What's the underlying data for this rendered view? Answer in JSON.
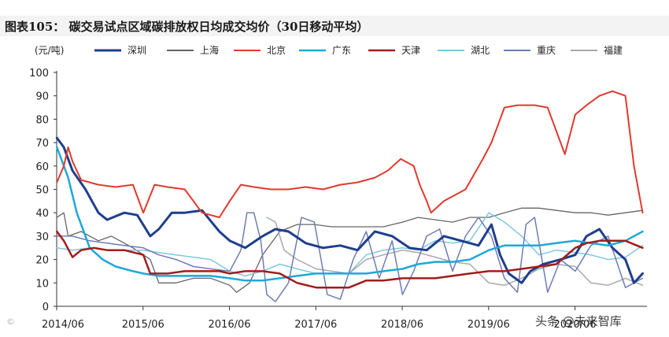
{
  "title": "图表105：  碳交易试点区域碳排放权日均成交均价（30日移动平均）",
  "watermark_right": "头条 @未来智库",
  "watermark_left": "©",
  "chart_data": {
    "type": "line",
    "unit_label": "(元/吨)",
    "ylim": [
      0,
      100
    ],
    "y_ticks": [
      "0",
      "10",
      "20",
      "30",
      "40",
      "50",
      "60",
      "70",
      "80",
      "90",
      "100"
    ],
    "x_tick_labels": [
      "2014/06",
      "2015/06",
      "2016/06",
      "2017/06",
      "2018/06",
      "2019/06",
      "2020/06"
    ],
    "xlim": [
      2014.417,
      2021.25
    ],
    "legend_position": "top",
    "series": [
      {
        "name": "深圳",
        "color": "#1f3e8c",
        "width": 3,
        "x": [
          2014.42,
          2014.5,
          2014.6,
          2014.75,
          2014.9,
          2015.0,
          2015.2,
          2015.35,
          2015.5,
          2015.6,
          2015.75,
          2015.9,
          2016.1,
          2016.3,
          2016.42,
          2016.6,
          2016.8,
          2016.95,
          2017.1,
          2017.3,
          2017.5,
          2017.7,
          2017.9,
          2018.1,
          2018.3,
          2018.5,
          2018.7,
          2018.9,
          2019.1,
          2019.3,
          2019.45,
          2019.55,
          2019.65,
          2019.8,
          2019.9,
          2020.05,
          2020.25,
          2020.42,
          2020.55,
          2020.7,
          2020.85,
          2021.0,
          2021.1,
          2021.2
        ],
        "y": [
          72,
          68,
          58,
          50,
          40,
          37,
          40,
          39,
          30,
          33,
          40,
          40,
          41,
          32,
          28,
          25,
          30,
          33,
          32,
          27,
          25,
          26,
          24,
          32,
          30,
          25,
          24,
          30,
          28,
          26,
          35,
          22,
          14,
          10,
          15,
          18,
          20,
          22,
          30,
          33,
          25,
          20,
          10,
          14
        ]
      },
      {
        "name": "上海",
        "color": "#666666",
        "width": 1.3,
        "x": [
          2014.42,
          2014.5,
          2014.55,
          2014.7,
          2014.8,
          2014.9,
          2015.05,
          2015.3,
          2015.5,
          2015.6,
          2015.8,
          2016.0,
          2016.2,
          2016.42,
          2016.5,
          2016.65,
          2016.8,
          2017.0,
          2017.2,
          2017.4,
          2017.6,
          2017.8,
          2018.0,
          2018.2,
          2018.42,
          2018.6,
          2018.8,
          2019.0,
          2019.2,
          2019.42,
          2019.6,
          2019.8,
          2020.0,
          2020.2,
          2020.42,
          2020.6,
          2020.8,
          2021.0,
          2021.2
        ],
        "y": [
          38,
          40,
          30,
          32,
          30,
          28,
          30,
          25,
          20,
          10,
          10,
          12,
          12,
          9,
          6,
          10,
          22,
          32,
          35,
          35,
          34,
          34,
          34,
          34,
          36,
          38,
          37,
          36,
          38,
          38,
          40,
          42,
          42,
          41,
          40,
          40,
          39,
          40,
          41
        ]
      },
      {
        "name": "北京",
        "color": "#e03a2e",
        "width": 2,
        "x": [
          2014.42,
          2014.5,
          2014.55,
          2014.6,
          2014.7,
          2014.9,
          2015.1,
          2015.3,
          2015.42,
          2015.55,
          2015.7,
          2015.9,
          2016.1,
          2016.3,
          2016.42,
          2016.55,
          2016.7,
          2016.9,
          2017.1,
          2017.3,
          2017.5,
          2017.7,
          2017.9,
          2018.1,
          2018.25,
          2018.4,
          2018.55,
          2018.62,
          2018.7,
          2018.75,
          2018.9,
          2019.0,
          2019.15,
          2019.35,
          2019.45,
          2019.6,
          2019.75,
          2019.95,
          2020.1,
          2020.3,
          2020.42,
          2020.55,
          2020.7,
          2020.85,
          2021.0,
          2021.1,
          2021.2
        ],
        "y": [
          53,
          60,
          68,
          62,
          54,
          52,
          51,
          52,
          40,
          52,
          51,
          50,
          40,
          38,
          45,
          52,
          51,
          50,
          50,
          51,
          50,
          52,
          53,
          55,
          58,
          63,
          60,
          52,
          45,
          40,
          45,
          47,
          50,
          63,
          70,
          85,
          86,
          86,
          85,
          65,
          82,
          86,
          90,
          92,
          90,
          60,
          40
        ]
      },
      {
        "name": "广东",
        "color": "#1ea8d8",
        "width": 2.5,
        "x": [
          2014.42,
          2014.55,
          2014.65,
          2014.8,
          2014.95,
          2015.1,
          2015.3,
          2015.42,
          2015.6,
          2015.8,
          2016.0,
          2016.2,
          2016.42,
          2016.6,
          2016.8,
          2017.0,
          2017.2,
          2017.42,
          2017.6,
          2017.8,
          2018.0,
          2018.2,
          2018.42,
          2018.6,
          2018.8,
          2019.0,
          2019.2,
          2019.42,
          2019.6,
          2019.8,
          2020.0,
          2020.2,
          2020.42,
          2020.6,
          2020.8,
          2021.0,
          2021.2
        ],
        "y": [
          68,
          55,
          40,
          25,
          20,
          17,
          15,
          14,
          13,
          13,
          13,
          13,
          12,
          11,
          11,
          12,
          13,
          14,
          14,
          14,
          14,
          15,
          16,
          18,
          19,
          19,
          20,
          24,
          26,
          26,
          26,
          27,
          28,
          27,
          26,
          28,
          32
        ]
      },
      {
        "name": "天津",
        "color": "#a11d1d",
        "width": 2.5,
        "x": [
          2014.42,
          2014.5,
          2014.6,
          2014.7,
          2014.85,
          2015.0,
          2015.2,
          2015.42,
          2015.5,
          2015.7,
          2015.9,
          2016.1,
          2016.3,
          2016.42,
          2016.6,
          2016.8,
          2017.0,
          2017.2,
          2017.42,
          2017.6,
          2017.8,
          2018.0,
          2018.2,
          2018.42,
          2018.6,
          2018.8,
          2019.0,
          2019.2,
          2019.42,
          2019.6,
          2019.8,
          2020.0,
          2020.2,
          2020.42,
          2020.55,
          2020.7,
          2020.85,
          2021.0,
          2021.2
        ],
        "y": [
          32,
          28,
          21,
          24,
          25,
          24,
          24,
          22,
          14,
          14,
          15,
          15,
          15,
          14,
          15,
          15,
          14,
          10,
          8,
          8,
          8,
          11,
          11,
          12,
          12,
          12,
          13,
          14,
          15,
          15,
          16,
          17,
          18,
          25,
          27,
          28,
          28,
          28,
          25
        ]
      },
      {
        "name": "湖北",
        "color": "#7fc7e0",
        "width": 1.5,
        "x": [
          2014.42,
          2014.6,
          2014.8,
          2015.0,
          2015.2,
          2015.42,
          2015.6,
          2015.8,
          2016.0,
          2016.2,
          2016.42,
          2016.6,
          2016.8,
          2017.0,
          2017.2,
          2017.42,
          2017.6,
          2017.8,
          2018.0,
          2018.2,
          2018.42,
          2018.6,
          2018.8,
          2019.0,
          2019.2,
          2019.42,
          2019.6,
          2019.8,
          2020.0,
          2020.2,
          2020.42,
          2020.6,
          2020.8,
          2021.0,
          2021.2
        ],
        "y": [
          25,
          24,
          25,
          24,
          24,
          24,
          23,
          22,
          21,
          20,
          15,
          13,
          15,
          18,
          16,
          14,
          14,
          14,
          22,
          24,
          25,
          24,
          28,
          27,
          28,
          40,
          36,
          30,
          22,
          24,
          23,
          22,
          20,
          21,
          26
        ]
      },
      {
        "name": "重庆",
        "color": "#6e7db3",
        "width": 1.5,
        "x": [
          2014.42,
          2014.6,
          2014.8,
          2015.0,
          2015.2,
          2015.42,
          2015.6,
          2015.8,
          2016.0,
          2016.2,
          2016.42,
          2016.55,
          2016.62,
          2016.7,
          2016.78,
          2016.85,
          2016.95,
          2017.1,
          2017.25,
          2017.4,
          2017.55,
          2017.7,
          2017.85,
          2018.0,
          2018.15,
          2018.3,
          2018.42,
          2018.55,
          2018.7,
          2018.85,
          2019.0,
          2019.15,
          2019.3,
          2019.45,
          2019.6,
          2019.75,
          2019.85,
          2019.95,
          2020.1,
          2020.25,
          2020.42,
          2020.6,
          2020.8,
          2021.0,
          2021.2
        ],
        "y": [
          30,
          30,
          28,
          27,
          26,
          25,
          22,
          20,
          17,
          16,
          15,
          24,
          40,
          40,
          28,
          5,
          2,
          10,
          38,
          36,
          5,
          3,
          20,
          32,
          12,
          28,
          5,
          15,
          30,
          33,
          15,
          30,
          38,
          30,
          12,
          6,
          35,
          38,
          6,
          20,
          15,
          26,
          30,
          8,
          12
        ]
      },
      {
        "name": "福建",
        "color": "#a9a9a9",
        "width": 1.5,
        "x": [
          2016.85,
          2016.95,
          2017.05,
          2017.2,
          2017.42,
          2017.6,
          2017.8,
          2018.0,
          2018.2,
          2018.42,
          2018.6,
          2018.8,
          2019.0,
          2019.2,
          2019.42,
          2019.6,
          2019.8,
          2020.0,
          2020.2,
          2020.42,
          2020.6,
          2020.8,
          2021.0,
          2021.2
        ],
        "y": [
          38,
          36,
          24,
          20,
          16,
          15,
          14,
          20,
          22,
          24,
          23,
          21,
          19,
          18,
          10,
          9,
          12,
          16,
          18,
          17,
          10,
          9,
          12,
          9
        ]
      }
    ]
  }
}
